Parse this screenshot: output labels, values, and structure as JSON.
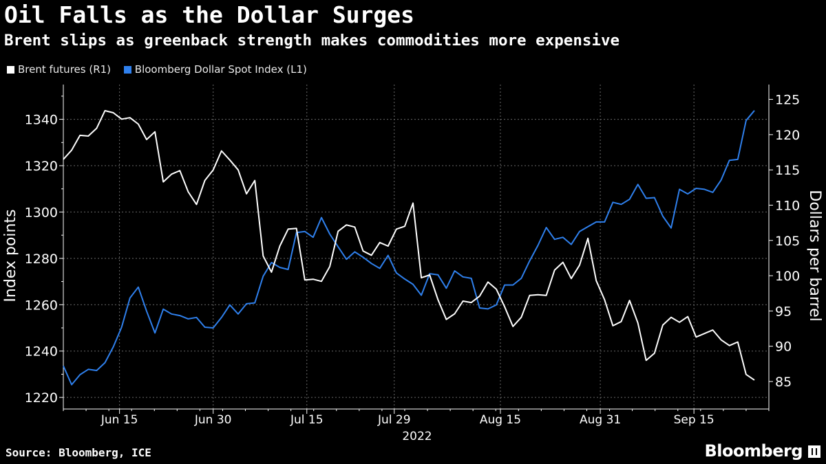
{
  "title": "Oil Falls as the Dollar Surges",
  "subtitle": "Brent slips as greenback strength makes commodities more expensive",
  "legend": [
    {
      "label": "Brent futures (R1)",
      "color": "#ffffff"
    },
    {
      "label": "Bloomberg Dollar Spot Index (L1)",
      "color": "#2f80ed"
    }
  ],
  "source": "Source: Bloomberg, ICE",
  "brand": "Bloomberg",
  "chart_data": {
    "type": "line",
    "title": "Oil Falls as the Dollar Surges",
    "xlabel": "2022",
    "x_ticks": [
      "Jun 15",
      "Jun 30",
      "Jul 15",
      "Jul 29",
      "Aug 15",
      "Aug 31",
      "Sep 15"
    ],
    "x_range": [
      "Jun 6",
      "Sep 27"
    ],
    "left_axis": {
      "label": "Index points",
      "min": 1215,
      "max": 1355,
      "ticks": [
        1220,
        1240,
        1260,
        1280,
        1300,
        1320,
        1340
      ]
    },
    "right_axis": {
      "label": "Dollars per barrel",
      "min": 81.1,
      "max": 127.1,
      "ticks": [
        85,
        90,
        95,
        100,
        105,
        110,
        115,
        120,
        125
      ]
    },
    "grid": true,
    "series": [
      {
        "name": "Bloomberg Dollar Spot Index (L1)",
        "axis": "left",
        "color": "#2f80ed",
        "values": [
          1233.6,
          1225.5,
          1229.8,
          1232.1,
          1231.6,
          1235.0,
          1241.8,
          1250.3,
          1262.9,
          1267.6,
          1257.2,
          1247.8,
          1258.1,
          1256.0,
          1255.3,
          1253.9,
          1254.5,
          1250.3,
          1250.0,
          1254.5,
          1259.9,
          1256.0,
          1260.4,
          1260.8,
          1272.3,
          1278.2,
          1276.1,
          1275.2,
          1291.1,
          1291.6,
          1289.1,
          1297.6,
          1290.5,
          1285.0,
          1279.6,
          1282.8,
          1280.5,
          1277.8,
          1275.7,
          1281.3,
          1273.7,
          1271.1,
          1268.8,
          1264.1,
          1273.4,
          1272.9,
          1267.1,
          1274.6,
          1272.0,
          1271.4,
          1258.6,
          1258.2,
          1259.9,
          1268.5,
          1268.5,
          1271.4,
          1278.9,
          1285.6,
          1293.3,
          1288.2,
          1289.1,
          1286.0,
          1291.6,
          1293.7,
          1295.7,
          1295.7,
          1304.2,
          1303.3,
          1305.5,
          1311.9,
          1305.9,
          1306.2,
          1298.2,
          1293.1,
          1309.8,
          1307.8,
          1310.2,
          1309.8,
          1308.5,
          1313.8,
          1322.3,
          1322.7,
          1339.5,
          1343.8
        ]
      },
      {
        "name": "Brent futures (R1)",
        "axis": "right",
        "color": "#ffffff",
        "values": [
          116.5,
          117.8,
          119.9,
          119.8,
          120.9,
          123.4,
          123.1,
          122.2,
          122.4,
          121.5,
          119.3,
          120.4,
          113.3,
          114.4,
          114.9,
          111.9,
          110.1,
          113.5,
          115.0,
          117.7,
          116.4,
          115.0,
          111.6,
          113.5,
          102.8,
          100.5,
          104.2,
          106.6,
          106.7,
          99.4,
          99.5,
          99.2,
          101.3,
          106.3,
          107.2,
          106.9,
          103.5,
          102.9,
          104.7,
          104.2,
          106.6,
          107.0,
          110.3,
          99.7,
          100.1,
          96.6,
          93.8,
          94.6,
          96.4,
          96.2,
          97.1,
          99.1,
          98.1,
          95.6,
          92.8,
          94.1,
          97.2,
          97.3,
          97.2,
          100.8,
          101.9,
          99.6,
          101.5,
          105.3,
          99.3,
          96.6,
          92.9,
          93.5,
          96.5,
          93.3,
          88.0,
          89.0,
          93.0,
          94.1,
          93.4,
          94.2,
          91.3,
          91.8,
          92.3,
          90.9,
          90.1,
          90.6,
          86.0,
          85.2
        ]
      }
    ]
  }
}
